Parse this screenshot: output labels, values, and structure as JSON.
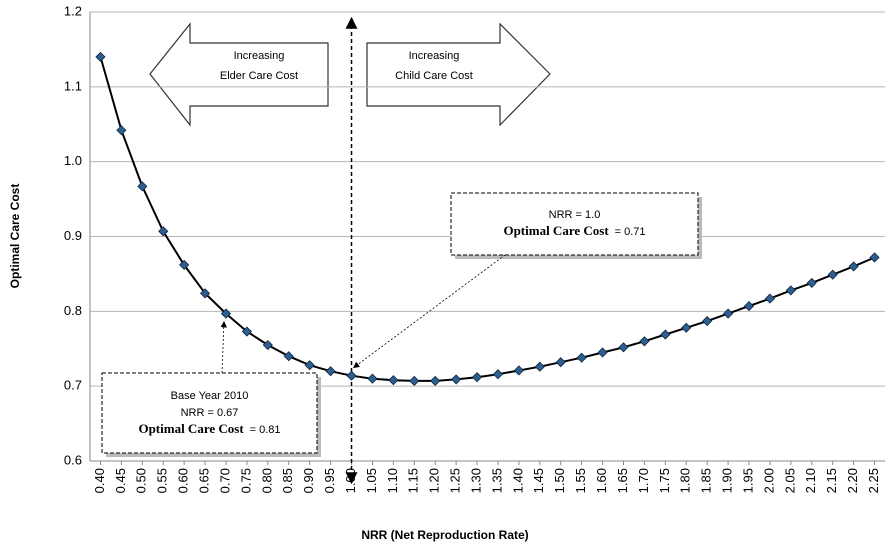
{
  "chart_data": {
    "type": "line",
    "x_label": "NRR (Net Reproduction Rate)",
    "y_label": "Optimal Care Cost",
    "categories": [
      "0.40",
      "0.45",
      "0.50",
      "0.55",
      "0.60",
      "0.65",
      "0.70",
      "0.75",
      "0.80",
      "0.85",
      "0.90",
      "0.95",
      "1.00",
      "1.05",
      "1.10",
      "1.15",
      "1.20",
      "1.25",
      "1.30",
      "1.35",
      "1.40",
      "1.45",
      "1.50",
      "1.55",
      "1.60",
      "1.65",
      "1.70",
      "1.75",
      "1.80",
      "1.85",
      "1.90",
      "1.95",
      "2.00",
      "2.05",
      "2.10",
      "2.15",
      "2.20",
      "2.25"
    ],
    "values": [
      1.14,
      1.042,
      0.967,
      0.907,
      0.862,
      0.824,
      0.797,
      0.773,
      0.755,
      0.74,
      0.728,
      0.72,
      0.714,
      0.71,
      0.708,
      0.707,
      0.707,
      0.709,
      0.712,
      0.716,
      0.721,
      0.726,
      0.732,
      0.738,
      0.745,
      0.752,
      0.76,
      0.769,
      0.778,
      0.787,
      0.797,
      0.807,
      0.817,
      0.828,
      0.838,
      0.849,
      0.86,
      0.872
    ],
    "color": "#000000",
    "marker_color": "#2f5f8f",
    "ylim": [
      0.6,
      1.2
    ],
    "yticks": [
      0.6,
      0.7,
      0.8,
      0.9,
      {
        "value": 1,
        "label": "1.0"
      },
      1.1,
      1.2
    ],
    "grid": true,
    "arrow_labels": [
      {
        "lines": [
          "Increasing",
          "Elder Care Cost"
        ]
      },
      {
        "lines": [
          "Increasing",
          "Child Care Cost"
        ]
      }
    ],
    "annotations": [
      {
        "lines": [
          [
            "NRR = 1.0"
          ],
          [
            "Optimal Care Cost",
            "= 0.71"
          ]
        ]
      },
      {
        "lines": [
          [
            "Base Year 2010"
          ],
          [
            "NRR = 0.67"
          ],
          [
            "Optimal  Care Cost",
            "= 0.81"
          ]
        ]
      }
    ]
  }
}
